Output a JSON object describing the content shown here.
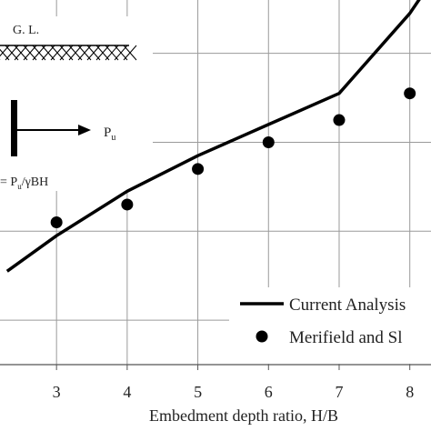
{
  "chart_data": {
    "type": "line",
    "xlabel": "Embedment depth ratio, H/B",
    "x_ticks": [
      3,
      4,
      5,
      6,
      7,
      8
    ],
    "xlim": [
      2.2,
      8.3
    ],
    "ylim": [
      0.5,
      4.6
    ],
    "grid": true,
    "legend_position": "bottom-right",
    "series": [
      {
        "name": "Current Analysis",
        "style": "line",
        "color": "#000000",
        "x": [
          2.3,
          3.0,
          4.0,
          5.0,
          6.0,
          7.0,
          8.0,
          8.3
        ],
        "y": [
          1.55,
          1.95,
          2.45,
          2.85,
          3.2,
          3.55,
          4.45,
          4.8
        ]
      },
      {
        "name": "Merifield and Sl",
        "style": "scatter",
        "color": "#000000",
        "x": [
          3.0,
          4.0,
          5.0,
          6.0,
          7.0,
          8.0
        ],
        "y": [
          2.1,
          2.3,
          2.7,
          3.0,
          3.25,
          3.55
        ]
      }
    ]
  },
  "inset": {
    "ground_label": "G. L.",
    "force_label_main": "P",
    "force_label_sub": "u",
    "formula_prefix": "= P",
    "formula_sub": "u",
    "formula_suffix": "/γBH"
  }
}
